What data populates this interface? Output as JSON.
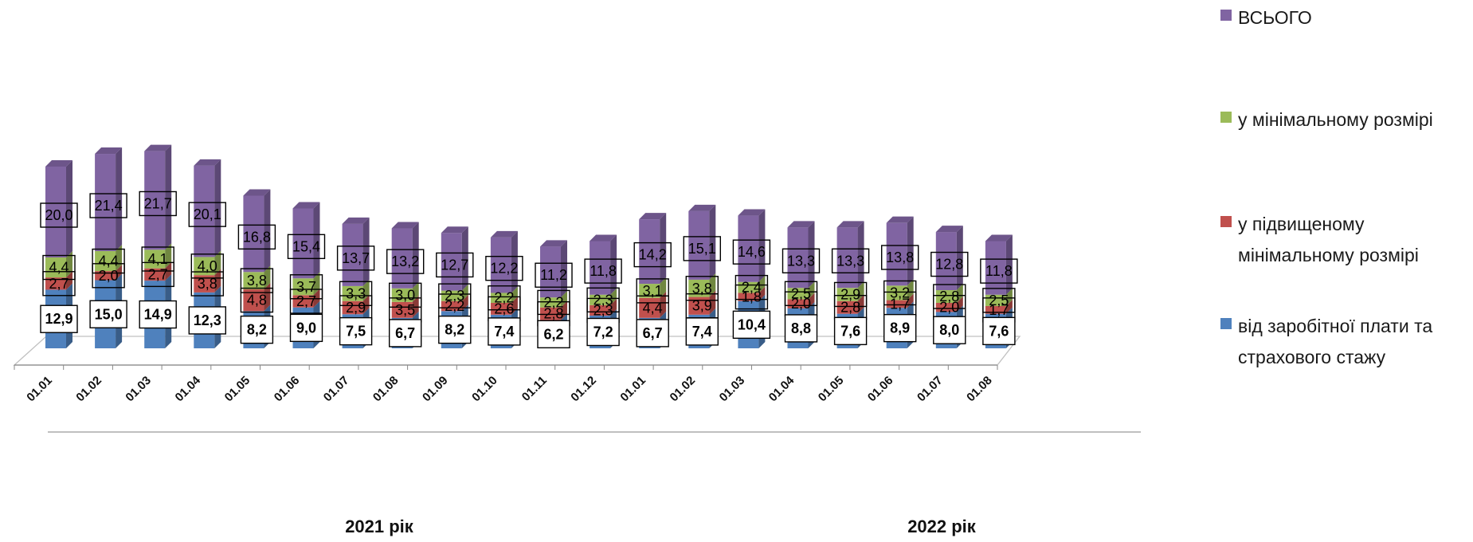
{
  "chart_data": {
    "type": "bar",
    "stacked": true,
    "three_d": true,
    "categories": [
      "01.01",
      "01.02",
      "01.03",
      "01.04",
      "01.05",
      "01.06",
      "01.07",
      "01.08",
      "01.09",
      "01.10",
      "01.11",
      "01.12",
      "01.01",
      "01.02",
      "01.03",
      "01.04",
      "01.05",
      "01.06",
      "01.07",
      "01.08"
    ],
    "groups": [
      {
        "label": "2021 рік",
        "from": 0,
        "to": 11
      },
      {
        "label": "2022 рік",
        "from": 12,
        "to": 19
      }
    ],
    "series": [
      {
        "name": "від заробітної плати та страхового стажу",
        "color": "#4f81bd",
        "values": [
          12.9,
          15.0,
          14.9,
          12.3,
          8.2,
          9.0,
          7.5,
          6.7,
          8.2,
          7.4,
          6.2,
          7.2,
          6.7,
          7.4,
          10.4,
          8.8,
          7.6,
          8.9,
          8.0,
          7.6
        ],
        "labels": [
          "12,9",
          "15,0",
          "14,9",
          "12,3",
          "8,2",
          "9,0",
          "7,5",
          "6,7",
          "8,2",
          "7,4",
          "6,2",
          "7,2",
          "6,7",
          "7,4",
          "10,4",
          "8,8",
          "7,6",
          "8,9",
          "8,0",
          "7,6"
        ]
      },
      {
        "name": "у підвищеному мінімальному розмірі",
        "color": "#c0504d",
        "values": [
          2.7,
          2.0,
          2.7,
          3.8,
          4.8,
          2.7,
          2.9,
          3.5,
          2.2,
          2.6,
          2.8,
          2.3,
          4.4,
          3.9,
          1.8,
          2.0,
          2.8,
          1.7,
          2.0,
          1.7
        ],
        "labels": [
          "2,7",
          "2,0",
          "2,7",
          "3,8",
          "4,8",
          "2,7",
          "2,9",
          "3,5",
          "2,2",
          "2,6",
          "2,8",
          "2,3",
          "4,4",
          "3,9",
          "1,8",
          "2,0",
          "2,8",
          "1,7",
          "2,0",
          "1,7"
        ]
      },
      {
        "name": "у мінімальному розмірі",
        "color": "#9bbb59",
        "values": [
          4.4,
          4.4,
          4.1,
          4.0,
          3.8,
          3.7,
          3.3,
          3.0,
          2.3,
          2.2,
          2.2,
          2.3,
          3.1,
          3.8,
          2.4,
          2.5,
          2.9,
          3.2,
          2.8,
          2.5
        ],
        "labels": [
          "4,4",
          "4,4",
          "4,1",
          "4,0",
          "3,8",
          "3,7",
          "3,3",
          "3,0",
          "2,3",
          "2,2",
          "2,2",
          "2,3",
          "3,1",
          "3,8",
          "2,4",
          "2,5",
          "2,9",
          "3,2",
          "2,8",
          "2,5"
        ]
      },
      {
        "name": "ВСЬОГО",
        "color": "#8064a2",
        "values": [
          20.0,
          21.4,
          21.7,
          20.1,
          16.8,
          15.4,
          13.7,
          13.2,
          12.7,
          12.2,
          11.2,
          11.8,
          14.2,
          15.1,
          14.6,
          13.3,
          13.3,
          13.8,
          12.8,
          11.8
        ],
        "labels": [
          "20,0",
          "21,4",
          "21,7",
          "20,1",
          "16,8",
          "15,4",
          "13,7",
          "13,2",
          "12,7",
          "12,2",
          "11,2",
          "11,8",
          "14,2",
          "15,1",
          "14,6",
          "13,3",
          "13,3",
          "13,8",
          "12,8",
          "11,8"
        ]
      }
    ],
    "legend": {
      "position": "right",
      "entries": [
        {
          "label": "ВСЬОГО",
          "color": "#8064a2"
        },
        {
          "label": "у мінімальному розмірі",
          "color": "#9bbb59"
        },
        {
          "label": "у підвищеному мінімальному розмірі",
          "color": "#c0504d"
        },
        {
          "label": "від заробітної плати та страхового стажу",
          "color": "#4f81bd"
        }
      ]
    },
    "grid": false
  }
}
